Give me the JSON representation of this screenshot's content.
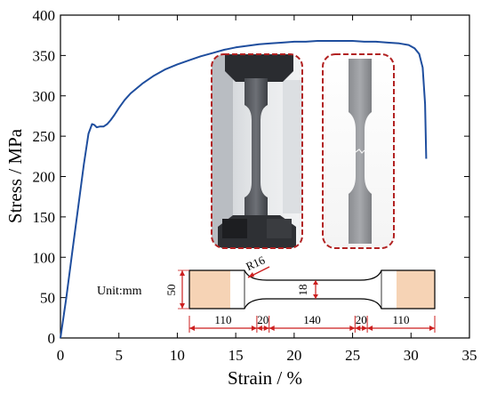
{
  "chart_data": {
    "type": "line",
    "title": "",
    "xlabel": "Strain / %",
    "ylabel": "Stress / MPa",
    "xlim": [
      0,
      35
    ],
    "ylim": [
      0,
      400
    ],
    "xticks": [
      "0",
      "5",
      "10",
      "15",
      "20",
      "25",
      "30",
      "35"
    ],
    "yticks": [
      "0",
      "50",
      "100",
      "150",
      "200",
      "250",
      "300",
      "350",
      "400"
    ],
    "grid": false,
    "series": [
      {
        "color": "#1f4e9e",
        "x": [
          0,
          0.5,
          1.0,
          1.5,
          2.0,
          2.4,
          2.7,
          2.9,
          3.1,
          3.4,
          3.7,
          4.0,
          4.3,
          4.6,
          5.0,
          5.5,
          6.0,
          7.0,
          8.0,
          9.0,
          10.0,
          11.0,
          12.0,
          13.0,
          14.0,
          15.0,
          16.0,
          17.0,
          18.0,
          19.0,
          20.0,
          21.0,
          22.0,
          23.0,
          24.0,
          25.0,
          26.0,
          27.0,
          28.0,
          29.0,
          29.8,
          30.3,
          30.7,
          31.0,
          31.2,
          31.3
        ],
        "y": [
          0,
          50,
          105,
          160,
          215,
          253,
          265,
          264,
          261,
          262,
          262,
          265,
          270,
          276,
          285,
          295,
          303,
          315,
          325,
          333,
          339,
          344,
          349,
          353,
          357,
          360,
          362,
          364,
          365,
          366,
          367,
          367,
          368,
          368,
          368,
          368,
          367,
          367,
          366,
          365,
          363,
          359,
          352,
          335,
          290,
          222
        ]
      }
    ]
  },
  "specimen": {
    "unit_label": "Unit:mm",
    "radius_label": "R16",
    "width_label": "50",
    "thickness_label": "18",
    "segments": [
      "110",
      "20",
      "140",
      "20",
      "110"
    ]
  },
  "colors": {
    "curve": "#1f4e9e",
    "dim_line": "#cc1f1f",
    "grip_fill": "#f6d3b5",
    "photo_frame": "#b22222"
  }
}
